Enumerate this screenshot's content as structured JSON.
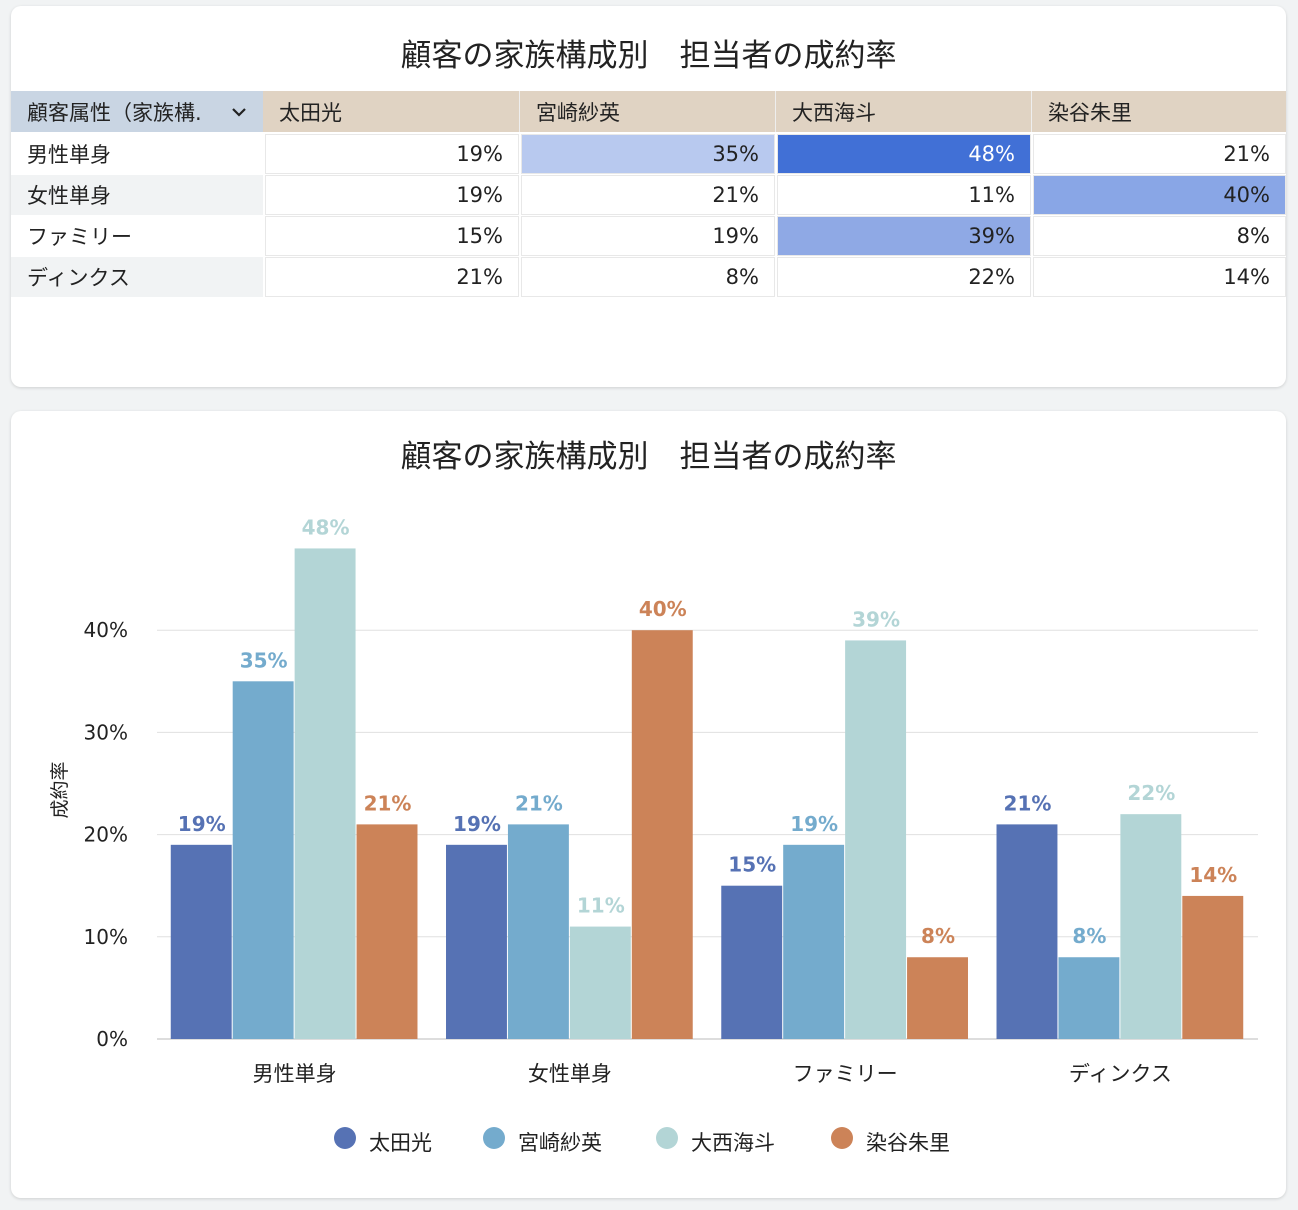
{
  "table": {
    "title": "顧客の家族構成別　担当者の成約率",
    "header": [
      "顧客属性（家族構.",
      "太田光",
      "宮崎紗英",
      "大西海斗",
      "染谷朱里"
    ],
    "rows": [
      {
        "label": "男性単身",
        "cells": [
          "19%",
          "35%",
          "48%",
          "21%"
        ],
        "cell_colors": [
          "#ffffff",
          "#b8c9ef",
          "#4170d6",
          "#ffffff"
        ]
      },
      {
        "label": "女性単身",
        "cells": [
          "19%",
          "21%",
          "11%",
          "40%"
        ],
        "cell_colors": [
          "#ffffff",
          "#ffffff",
          "#ffffff",
          "#89a6e6"
        ]
      },
      {
        "label": "ファミリー",
        "cells": [
          "15%",
          "19%",
          "39%",
          "8%"
        ],
        "cell_colors": [
          "#ffffff",
          "#ffffff",
          "#8fa9e5",
          "#ffffff"
        ]
      },
      {
        "label": "ディンクス",
        "cells": [
          "21%",
          "8%",
          "22%",
          "14%"
        ],
        "cell_colors": [
          "#ffffff",
          "#ffffff",
          "#ffffff",
          "#ffffff"
        ]
      }
    ]
  },
  "chart_data": {
    "type": "bar",
    "title": "顧客の家族構成別　担当者の成約率",
    "y_label": "成約率",
    "categories": [
      "男性単身",
      "女性単身",
      "ファミリー",
      "ディンクス"
    ],
    "series": [
      {
        "name": "太田光",
        "color": "#5672b4",
        "values": [
          19,
          19,
          15,
          21
        ],
        "value_labels": [
          "19%",
          "19%",
          "15%",
          "21%"
        ]
      },
      {
        "name": "宮崎紗英",
        "color": "#74abcd",
        "values": [
          35,
          21,
          19,
          8
        ],
        "value_labels": [
          "35%",
          "21%",
          "19%",
          "8%"
        ]
      },
      {
        "name": "大西海斗",
        "color": "#b3d5d6",
        "values": [
          48,
          11,
          39,
          22
        ],
        "value_labels": [
          "48%",
          "11%",
          "39%",
          "22%"
        ]
      },
      {
        "name": "染谷朱里",
        "color": "#cc8358",
        "values": [
          21,
          40,
          8,
          14
        ],
        "value_labels": [
          "21%",
          "40%",
          "8%",
          "14%"
        ]
      }
    ],
    "ylim": [
      0,
      50
    ],
    "yticks": [
      {
        "value": 0,
        "label": "0%"
      },
      {
        "value": 10,
        "label": "10%"
      },
      {
        "value": 20,
        "label": "20%"
      },
      {
        "value": 30,
        "label": "30%"
      },
      {
        "value": 40,
        "label": "40%"
      }
    ],
    "grid": true,
    "legend": "bottom"
  }
}
